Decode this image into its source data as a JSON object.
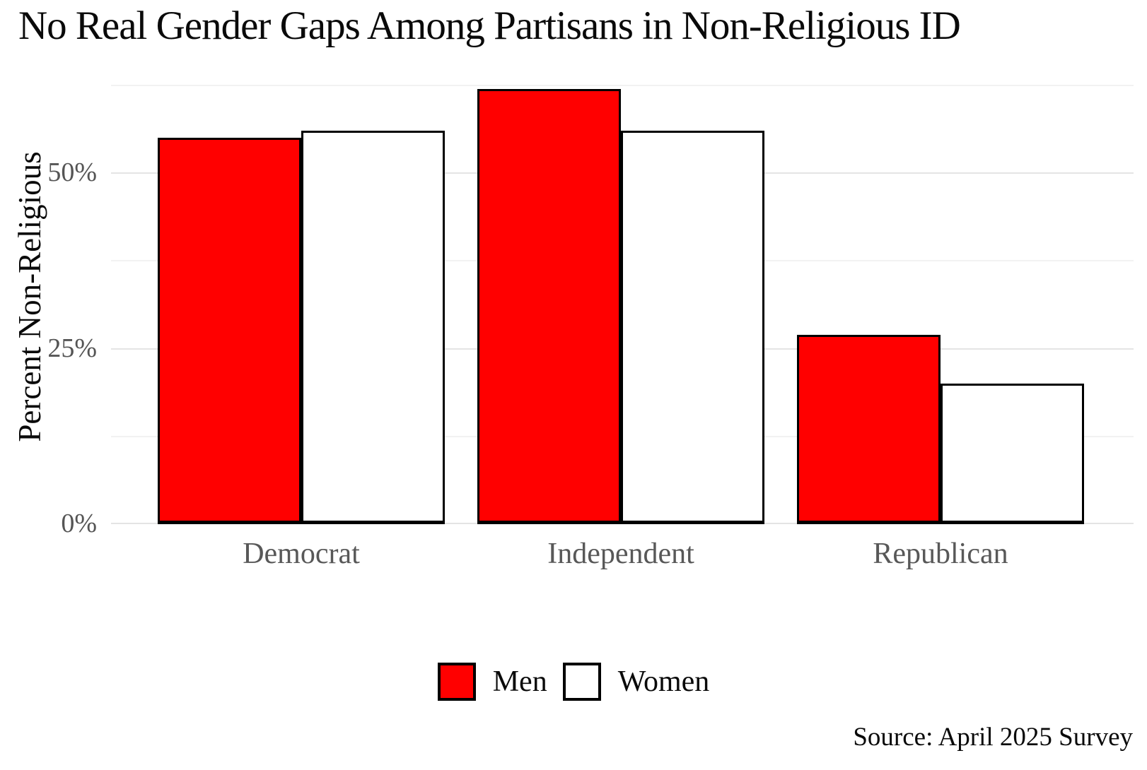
{
  "chart_data": {
    "type": "bar",
    "title": "No Real Gender Gaps Among Partisans in Non-Religious ID",
    "xlabel": "",
    "ylabel": "Percent Non-Religious",
    "categories": [
      "Democrat",
      "Independent",
      "Republican"
    ],
    "series": [
      {
        "name": "Men",
        "color": "#ff0000",
        "values": [
          55,
          62,
          27
        ]
      },
      {
        "name": "Women",
        "color": "#ffffff",
        "values": [
          56,
          56,
          20
        ]
      }
    ],
    "unit": "%",
    "y_axis": {
      "ticks": [
        {
          "value": 0,
          "label": "0%"
        },
        {
          "value": 25,
          "label": "25%"
        },
        {
          "value": 50,
          "label": "50%"
        }
      ],
      "minor_gridlines": [
        12.5,
        37.5,
        62.5
      ],
      "ylim": [
        0,
        65.2
      ]
    },
    "grid": "horizontal, major and minor, light gray, no axis lines",
    "legend_position": "bottom-center",
    "bar_outline_color": "#000000",
    "background_color": "#ffffff",
    "source_note": "Source: April 2025 Survey"
  }
}
